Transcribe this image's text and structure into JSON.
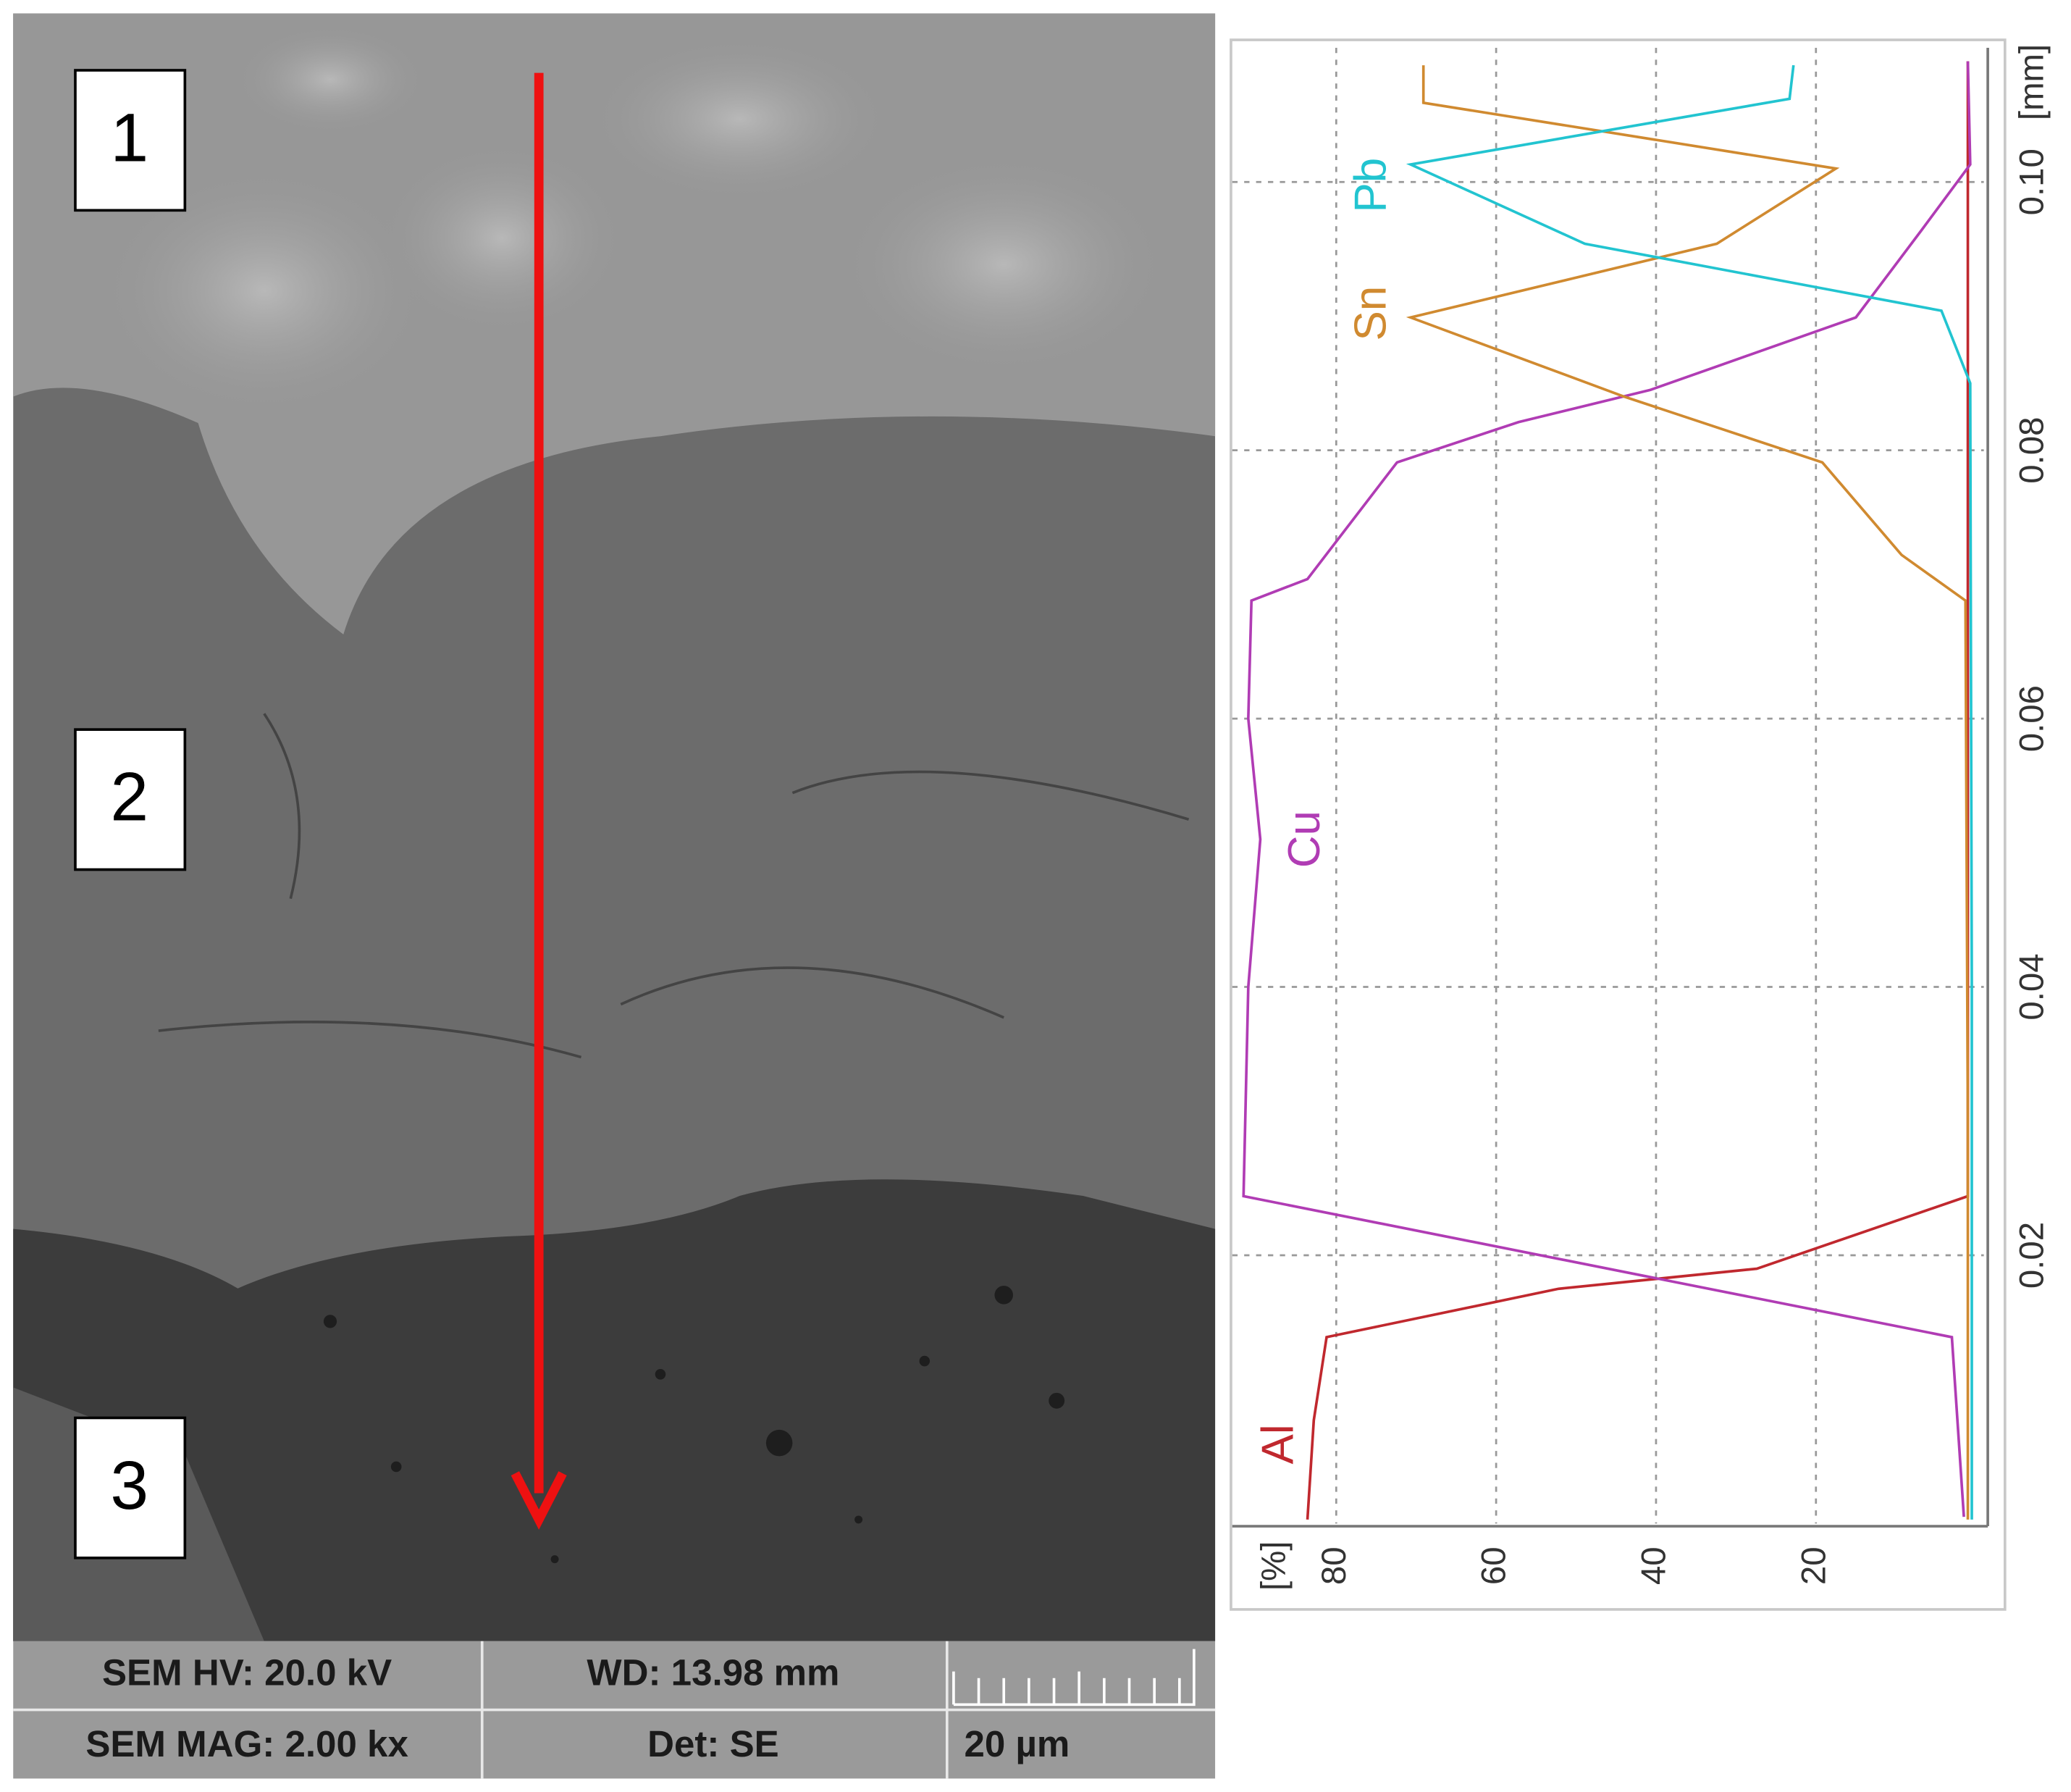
{
  "sem_panel": {
    "region_labels": [
      "1",
      "2",
      "3"
    ],
    "info": {
      "rows": [
        [
          "SEM HV: 20.0 kV",
          "WD: 13.98 mm"
        ],
        [
          "SEM MAG: 2.00 kx",
          "Det: SE",
          "20 µm"
        ]
      ]
    }
  },
  "chart_data": {
    "type": "line",
    "x_label": "[mm]",
    "y_label": "[%]",
    "xlim": [
      0,
      0.11
    ],
    "xticks": [
      {
        "value": 0.02,
        "label": "0.02"
      },
      {
        "value": 0.04,
        "label": "0.04"
      },
      {
        "value": 0.06,
        "label": "0.06"
      },
      {
        "value": 0.08,
        "label": "0.08"
      },
      {
        "value": 0.1,
        "label": "0.10"
      }
    ],
    "ylim": [
      -1,
      93
    ],
    "yticks": [
      20,
      40,
      60,
      80
    ],
    "grid": true,
    "series": [
      {
        "name": "Al",
        "color": "#c0282e",
        "x": [
          0.0003,
          0.0077,
          0.0139,
          0.0175,
          0.019,
          0.0244,
          0.05,
          0.08,
          0.109
        ],
        "values": [
          83.6,
          82.8,
          81.2,
          52.2,
          27.4,
          1,
          1,
          1,
          1
        ]
      },
      {
        "name": "Cu",
        "color": "#b03cb4",
        "x": [
          0.0005,
          0.0139,
          0.0244,
          0.04,
          0.051,
          0.06,
          0.0688,
          0.0704,
          0.0791,
          0.0821,
          0.0845,
          0.0899,
          0.0964,
          0.1013,
          0.109
        ],
        "values": [
          1.5,
          3,
          91.6,
          91,
          89.5,
          91,
          90.6,
          83.6,
          72.4,
          57.2,
          40.7,
          15,
          6.8,
          0.7,
          1
        ]
      },
      {
        "name": "Sn",
        "color": "#d08a30",
        "x": [
          0.0003,
          0.03,
          0.0688,
          0.0722,
          0.0791,
          0.084,
          0.0899,
          0.0954,
          0.101,
          0.1059,
          0.1087
        ],
        "values": [
          1,
          1,
          1.3,
          9.3,
          19.2,
          44,
          70.7,
          32.4,
          17.5,
          69.1,
          69.1
        ]
      },
      {
        "name": "Pb",
        "color": "#22c4d0",
        "x": [
          0.0003,
          0.04,
          0.085,
          0.0904,
          0.0954,
          0.1013,
          0.1062,
          0.1087
        ],
        "values": [
          0.5,
          0.5,
          0.7,
          4.3,
          48.9,
          70.7,
          23.3,
          22.8
        ]
      }
    ]
  }
}
